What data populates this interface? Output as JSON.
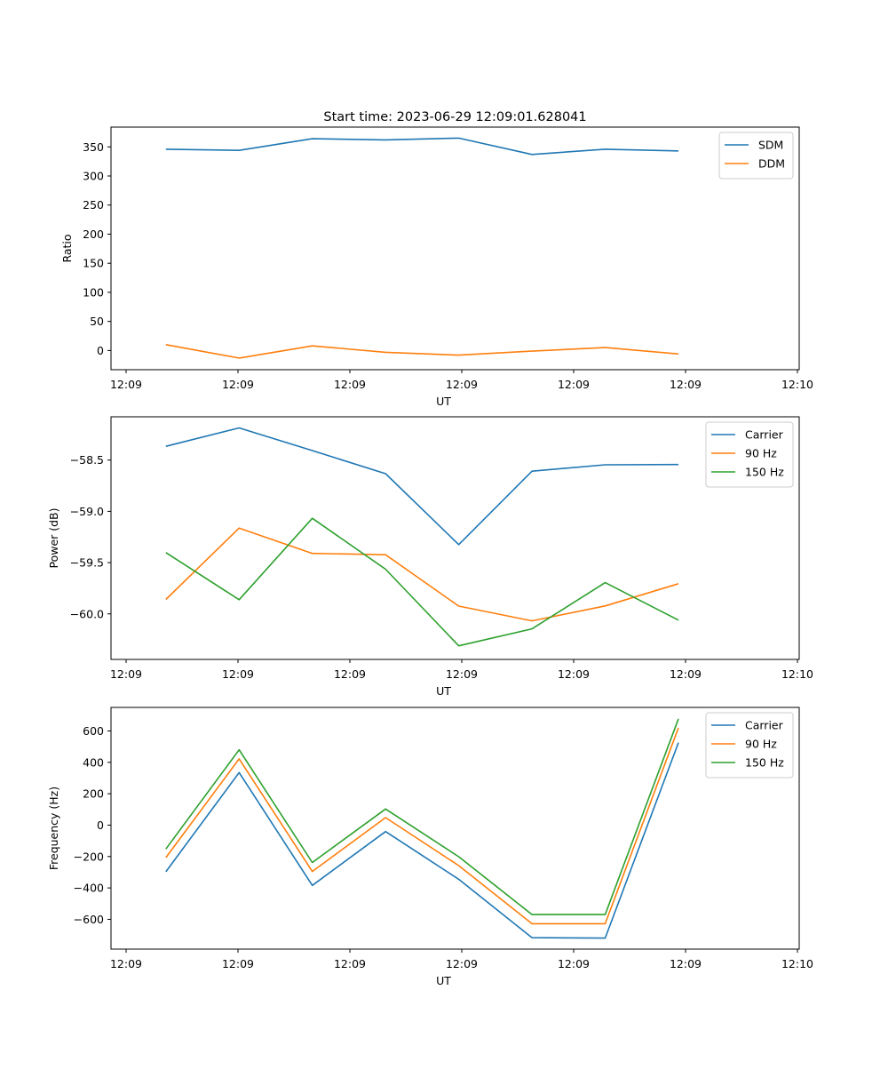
{
  "chart_data": [
    {
      "type": "line",
      "title": "Start time: 2023-06-29 12:09:01.628041",
      "xlabel": "UT",
      "ylabel": "Ratio",
      "x_tick_labels": [
        "12:09",
        "12:09",
        "12:09",
        "12:09",
        "12:09",
        "12:09",
        "12:10"
      ],
      "xlim": [
        -0.2,
        9.2
      ],
      "ylim": [
        -33,
        384
      ],
      "y_ticks": [
        0,
        50,
        100,
        150,
        200,
        250,
        300,
        350
      ],
      "y_tick_labels": [
        "0",
        "50",
        "100",
        "150",
        "200",
        "250",
        "300",
        "350"
      ],
      "x": [
        0.55,
        1.55,
        2.55,
        3.55,
        4.55,
        5.55,
        6.55,
        7.55
      ],
      "series": [
        {
          "name": "SDM",
          "color": "#1f77b4",
          "values": [
            346,
            344,
            364,
            362,
            365,
            337,
            346,
            343
          ]
        },
        {
          "name": "DDM",
          "color": "#ff7f0e",
          "values": [
            10,
            -13,
            8,
            -3,
            -8,
            -1,
            5,
            -6
          ]
        }
      ],
      "legend": "upper right",
      "grid": false
    },
    {
      "type": "line",
      "title": "",
      "xlabel": "UT",
      "ylabel": "Power (dB)",
      "x_tick_labels": [
        "12:09",
        "12:09",
        "12:09",
        "12:09",
        "12:09",
        "12:09",
        "12:10"
      ],
      "xlim": [
        -0.2,
        9.2
      ],
      "ylim": [
        -60.444,
        -58.078
      ],
      "y_ticks": [
        -60.0,
        -59.5,
        -59.0,
        -58.5
      ],
      "y_tick_labels": [
        "−60.0",
        "−59.5",
        "−59.0",
        "−58.5"
      ],
      "x": [
        0.55,
        1.55,
        2.55,
        3.55,
        4.55,
        5.55,
        6.55,
        7.55
      ],
      "series": [
        {
          "name": "Carrier",
          "color": "#1f77b4",
          "values": [
            -58.366,
            -58.186,
            -58.407,
            -58.633,
            -59.324,
            -58.608,
            -58.546,
            -58.543
          ]
        },
        {
          "name": "90 Hz",
          "color": "#ff7f0e",
          "values": [
            -59.859,
            -59.163,
            -59.41,
            -59.423,
            -59.924,
            -60.068,
            -59.922,
            -59.706
          ]
        },
        {
          "name": "150 Hz",
          "color": "#2ca02c",
          "values": [
            -59.402,
            -59.862,
            -59.068,
            -59.564,
            -60.311,
            -60.146,
            -59.695,
            -60.061
          ]
        }
      ],
      "legend": "upper right",
      "grid": false
    },
    {
      "type": "line",
      "title": "",
      "xlabel": "UT",
      "ylabel": "Frequency (Hz)",
      "x_tick_labels": [
        "12:09",
        "12:09",
        "12:09",
        "12:09",
        "12:09",
        "12:09",
        "12:10"
      ],
      "xlim": [
        -0.2,
        9.2
      ],
      "ylim": [
        -790,
        750
      ],
      "y_ticks": [
        -600,
        -400,
        -200,
        0,
        200,
        400,
        600
      ],
      "y_tick_labels": [
        "−600",
        "−400",
        "−200",
        "0",
        "200",
        "400",
        "600"
      ],
      "x": [
        0.55,
        1.55,
        2.55,
        3.55,
        4.55,
        5.55,
        6.55,
        7.55
      ],
      "series": [
        {
          "name": "Carrier",
          "color": "#1f77b4",
          "values": [
            -297,
            335,
            -384,
            -41,
            -345,
            -717,
            -720,
            525
          ]
        },
        {
          "name": "90 Hz",
          "color": "#ff7f0e",
          "values": [
            -207,
            422,
            -295,
            48,
            -258,
            -628,
            -628,
            620
          ]
        },
        {
          "name": "150 Hz",
          "color": "#2ca02c",
          "values": [
            -152,
            480,
            -238,
            103,
            -201,
            -570,
            -570,
            677
          ]
        }
      ],
      "legend": "upper right",
      "grid": false
    }
  ]
}
